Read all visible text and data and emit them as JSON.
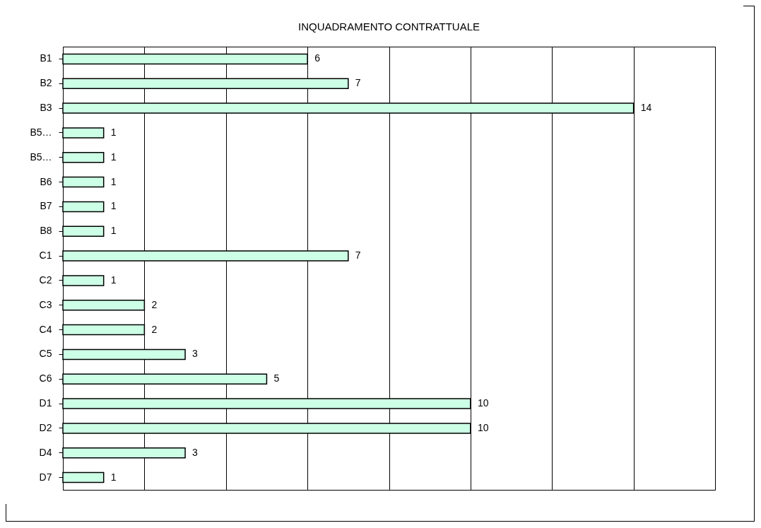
{
  "chart_data": {
    "type": "bar",
    "title": "INQUADRAMENTO  CONTRATTUALE",
    "orientation": "horizontal",
    "categories": [
      "B1",
      "B2",
      "B3",
      "B5…",
      "B5…",
      "B6",
      "B7",
      "B8",
      "C1",
      "C2",
      "C3",
      "C4",
      "C5",
      "C6",
      "D1",
      "D2",
      "D4",
      "D7"
    ],
    "values": [
      6,
      7,
      14,
      1,
      1,
      1,
      1,
      1,
      7,
      1,
      2,
      2,
      3,
      5,
      10,
      10,
      3,
      1
    ],
    "color": "#ccffe6",
    "xlim": [
      0,
      16
    ],
    "xticks": [
      {
        "value": 0,
        "label": null
      },
      {
        "value": 2,
        "label": null
      },
      {
        "value": 4,
        "label": null
      },
      {
        "value": 6,
        "label": null
      },
      {
        "value": 8,
        "label": null
      },
      {
        "value": 10,
        "label": null
      },
      {
        "value": 12,
        "label": null
      },
      {
        "value": 14,
        "label": null
      },
      {
        "value": 16,
        "label": null
      }
    ],
    "grid": "x",
    "tick_labels": "y",
    "data_labels": true
  }
}
